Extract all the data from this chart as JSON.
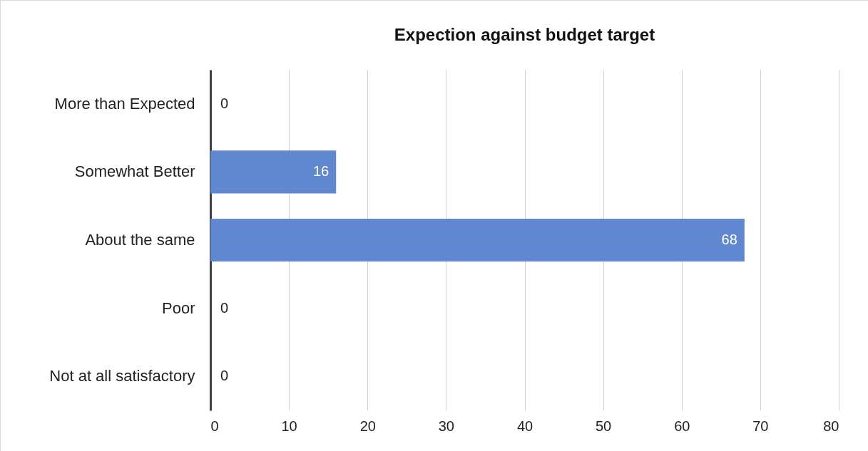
{
  "chart_data": {
    "type": "bar",
    "orientation": "horizontal",
    "title": "Expection against budget target",
    "categories": [
      "More than Expected",
      "Somewhat Better",
      "About the same",
      "Poor",
      "Not at all satisfactory"
    ],
    "values": [
      0,
      16,
      68,
      0,
      0
    ],
    "color": "#5f88d0",
    "xlim": [
      0,
      80
    ],
    "xticks": [
      0,
      10,
      20,
      30,
      40,
      50,
      60,
      70,
      80
    ],
    "grid": "x",
    "data_labels": true
  }
}
